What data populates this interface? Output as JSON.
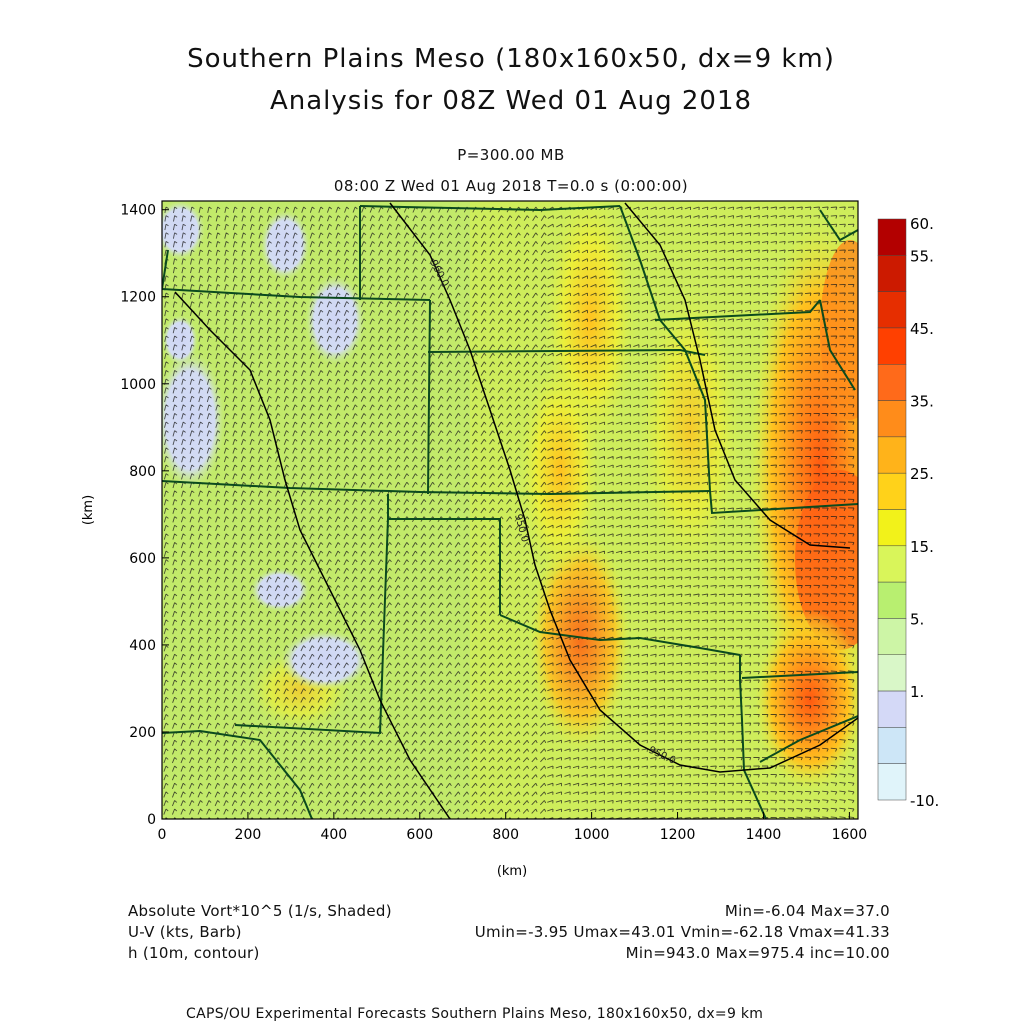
{
  "title": {
    "line1": "Southern Plains Meso (180x160x50, dx=9 km)",
    "line2": "Analysis for 08Z Wed 01 Aug 2018"
  },
  "subtitle": {
    "level": "P=300.00 MB",
    "time": "08:00 Z Wed 01 Aug 2018    T=0.0 s (0:00:00)"
  },
  "axes": {
    "x_label": "(km)",
    "y_label": "(km)",
    "x_ticks": [
      "0",
      "200",
      "400",
      "600",
      "800",
      "1000",
      "1200",
      "1400",
      "1600"
    ],
    "y_ticks": [
      "0",
      "200",
      "400",
      "600",
      "800",
      "1000",
      "1200",
      "1400"
    ],
    "x_range": [
      0,
      1620
    ],
    "y_range": [
      0,
      1420
    ]
  },
  "colorbar": {
    "labels": [
      "60.",
      "55.",
      "45.",
      "35.",
      "25.",
      "15.",
      "5.",
      "1.",
      "-10."
    ],
    "colors": [
      "#b30000",
      "#cc1a00",
      "#e62e00",
      "#ff4000",
      "#ff6a1a",
      "#ff8c1a",
      "#ffb31a",
      "#ffd21a",
      "#f2f21a",
      "#d9f55a",
      "#b8ef70",
      "#cdf5a6",
      "#d9f7c8",
      "#d4d9f7",
      "#cde6f7",
      "#e0f4fa"
    ]
  },
  "contour_labels": [
    "960.0",
    "950.0",
    "950.0"
  ],
  "legend": {
    "field1": "Absolute Vort*10^5 (1/s, Shaded)",
    "field1_stats": "Min=-6.04 Max=37.0",
    "field2": "U-V (kts, Barb)",
    "field2_stats": "Umin=-3.95 Umax=43.01 Vmin=-62.18 Vmax=41.33",
    "field3": "h (10m, contour)",
    "field3_stats": "Min=943.0 Max=975.4 inc=10.00"
  },
  "footer": "CAPS/OU Experimental Forecasts  Southern Plains Meso, 180x160x50, dx=9 km"
}
